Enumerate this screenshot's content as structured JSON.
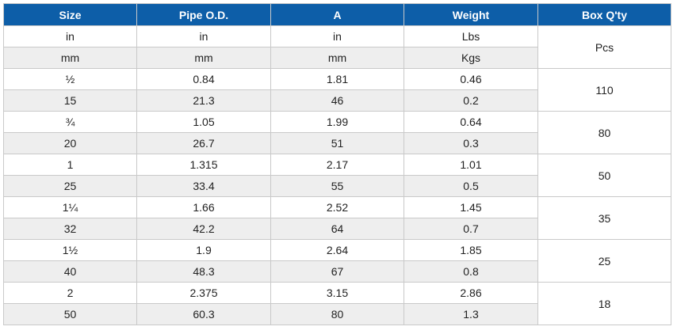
{
  "table": {
    "headers": [
      "Size",
      "Pipe O.D.",
      "A",
      "Weight",
      "Box Q'ty"
    ],
    "unit_rows": [
      [
        "in",
        "in",
        "in",
        "Lbs"
      ],
      [
        "mm",
        "mm",
        "mm",
        "Kgs"
      ]
    ],
    "unit_box": "Pcs",
    "groups": [
      {
        "rows": [
          [
            "½",
            "0.84",
            "1.81",
            "0.46"
          ],
          [
            "15",
            "21.3",
            "46",
            "0.2"
          ]
        ],
        "box": "110"
      },
      {
        "rows": [
          [
            "¾",
            "1.05",
            "1.99",
            "0.64"
          ],
          [
            "20",
            "26.7",
            "51",
            "0.3"
          ]
        ],
        "box": "80"
      },
      {
        "rows": [
          [
            "1",
            "1.315",
            "2.17",
            "1.01"
          ],
          [
            "25",
            "33.4",
            "55",
            "0.5"
          ]
        ],
        "box": "50"
      },
      {
        "rows": [
          [
            "1¼",
            "1.66",
            "2.52",
            "1.45"
          ],
          [
            "32",
            "42.2",
            "64",
            "0.7"
          ]
        ],
        "box": "35"
      },
      {
        "rows": [
          [
            "1½",
            "1.9",
            "2.64",
            "1.85"
          ],
          [
            "40",
            "48.3",
            "67",
            "0.8"
          ]
        ],
        "box": "25"
      },
      {
        "rows": [
          [
            "2",
            "2.375",
            "3.15",
            "2.86"
          ],
          [
            "50",
            "60.3",
            "80",
            "1.3"
          ]
        ],
        "box": "18"
      }
    ]
  },
  "colors": {
    "header_bg": "#0d5ea8",
    "header_text": "#ffffff",
    "shade_row": "#eeeeee",
    "border": "#c9c9c9"
  }
}
